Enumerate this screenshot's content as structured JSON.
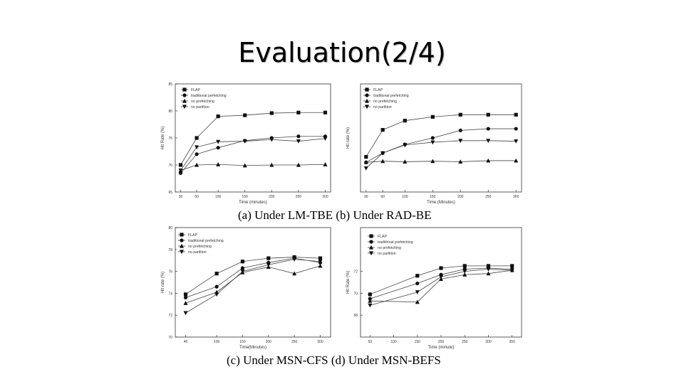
{
  "slide": {
    "title": "Evaluation(2/4)"
  },
  "captions": {
    "top": "(a) Under LM-TBE (b) Under RAD-BE",
    "bottom": "(c) Under MSN-CFS (d) Under MSN-BEFS"
  },
  "chart_data": [
    {
      "type": "line",
      "x": [
        30,
        60,
        100,
        150,
        200,
        250,
        300
      ],
      "xticks": [
        30,
        60,
        100,
        150,
        200,
        250,
        300
      ],
      "xlim": [
        20,
        310
      ],
      "ylim": [
        65,
        85
      ],
      "yticks": [
        65,
        70,
        75,
        80,
        85
      ],
      "xlabel": "Time (minutes)",
      "ylabel": "Hit Rate (%)",
      "legend": "top-left",
      "series": [
        {
          "name": "FLAP",
          "marker": "square",
          "values": [
            70,
            75,
            79,
            79.2,
            79.6,
            79.7,
            79.7
          ]
        },
        {
          "name": "traditional prefetching",
          "marker": "circle",
          "values": [
            68.5,
            72,
            73.2,
            74.5,
            75,
            75.3,
            75.3
          ]
        },
        {
          "name": "no prefetching",
          "marker": "triangle-up",
          "values": [
            69,
            70,
            70.1,
            69.9,
            70,
            70,
            70.1
          ]
        },
        {
          "name": "no partition",
          "marker": "triangle-down",
          "values": [
            69,
            73.3,
            74.3,
            74.4,
            74.7,
            74.4,
            74.9
          ]
        }
      ]
    },
    {
      "type": "line",
      "x": [
        30,
        60,
        100,
        150,
        200,
        250,
        300
      ],
      "xticks": [
        30,
        60,
        100,
        150,
        200,
        250,
        300
      ],
      "xlim": [
        20,
        310
      ],
      "ylim": [
        65,
        85
      ],
      "yticks": [],
      "xlabel": "Time (Minutes)",
      "ylabel": "Hit rate (%)",
      "legend": "top-left",
      "series": [
        {
          "name": "FLAP",
          "marker": "square",
          "values": [
            71.5,
            76.5,
            78.2,
            78.9,
            79.3,
            79.3,
            79.3
          ]
        },
        {
          "name": "traditional prefetching",
          "marker": "circle",
          "values": [
            70.5,
            72.2,
            73.8,
            75,
            76.4,
            76.7,
            76.7
          ]
        },
        {
          "name": "no prefetching",
          "marker": "triangle-up",
          "values": [
            70.5,
            70.7,
            70.6,
            70.7,
            70.6,
            70.8,
            70.8
          ]
        },
        {
          "name": "no partition",
          "marker": "triangle-down",
          "values": [
            69.4,
            72.2,
            73.7,
            74.2,
            74.5,
            74.5,
            74.4
          ]
        }
      ]
    },
    {
      "type": "line",
      "x": [
        40,
        100,
        150,
        200,
        250,
        300
      ],
      "xticks": [
        40,
        100,
        150,
        200,
        250,
        300
      ],
      "xlim": [
        20,
        320
      ],
      "ylim": [
        70,
        80
      ],
      "yticks": [
        70,
        72,
        74,
        76,
        78,
        80
      ],
      "xlabel": "Time(Minutes)",
      "ylabel": "Hit rate (%)",
      "legend": "top-left",
      "series": [
        {
          "name": "FLAP",
          "marker": "square",
          "values": [
            73.9,
            75.8,
            76.9,
            77.2,
            77.3,
            77.2
          ]
        },
        {
          "name": "traditional prefetching",
          "marker": "circle",
          "values": [
            73.6,
            74.6,
            76.3,
            76.8,
            77.2,
            76.8
          ]
        },
        {
          "name": "no prefetching",
          "marker": "triangle-up",
          "values": [
            73.1,
            74.1,
            75.9,
            76.4,
            75.8,
            76.5
          ]
        },
        {
          "name": "no partition",
          "marker": "triangle-down",
          "values": [
            72.2,
            73.9,
            76,
            76.6,
            77.1,
            76.9
          ]
        }
      ]
    },
    {
      "type": "line",
      "x": [
        50,
        150,
        200,
        250,
        300,
        350
      ],
      "xticks": [
        50,
        100,
        150,
        200,
        250,
        300,
        350
      ],
      "xlim": [
        30,
        370
      ],
      "ylim": [
        66,
        76
      ],
      "yticks": [
        68,
        70,
        72
      ],
      "xlabel": "Time (minute)",
      "ylabel": "Hit Rate (%)",
      "legend": "top-left",
      "series": [
        {
          "name": "FLAP",
          "marker": "square",
          "values": [
            69.9,
            71.6,
            72.3,
            72.5,
            72.5,
            72.5
          ]
        },
        {
          "name": "traditional prefetching",
          "marker": "circle",
          "values": [
            69.5,
            70.9,
            71.7,
            72.2,
            72.3,
            72.2
          ]
        },
        {
          "name": "no prefetching",
          "marker": "triangle-up",
          "values": [
            69.3,
            69.2,
            71.3,
            71.7,
            71.8,
            72.1
          ]
        },
        {
          "name": "no partition",
          "marker": "triangle-down",
          "values": [
            68.9,
            70.1,
            71.5,
            72,
            72.2,
            72.1
          ]
        }
      ]
    }
  ]
}
